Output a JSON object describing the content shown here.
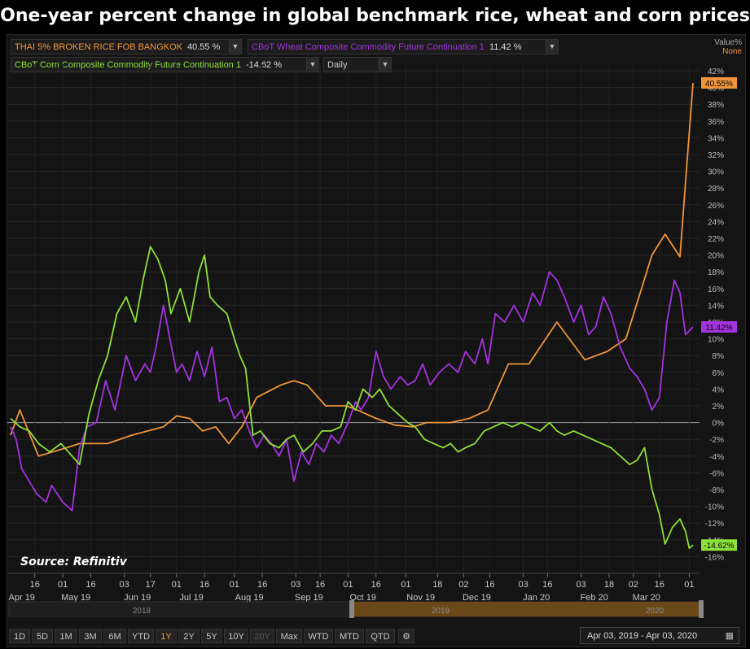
{
  "title": "One-year percent change in global benchmark rice, wheat and corn prices",
  "source": "Source: Refinitiv",
  "legend": {
    "rice": {
      "name": "THAI 5% BROKEN RICE FOB BANGKOK",
      "value": "40.55 %"
    },
    "wheat": {
      "name": "CBoT Wheat Composite Commodity Future Continuation 1",
      "value": "11.42 %"
    },
    "corn": {
      "name": "CBoT Corn Composite Commodity Future Continuation 1",
      "value": "-14.62 %"
    },
    "interval": "Daily",
    "value_label": "Value%",
    "none_label": "None"
  },
  "colors": {
    "rice": "#f0953a",
    "wheat": "#a433e0",
    "corn": "#8ee03a",
    "active": "#e8a33c"
  },
  "timeline": {
    "y2018": "2018",
    "y2019": "2019",
    "y2020": "2020"
  },
  "ranges": [
    "1D",
    "5D",
    "1M",
    "3M",
    "6M",
    "YTD",
    "1Y",
    "2Y",
    "5Y",
    "10Y",
    "20Y",
    "Max",
    "WTD",
    "MTD",
    "QTD"
  ],
  "active_range": "1Y",
  "disabled_range": "20Y",
  "settings_icon": "gear-icon",
  "date_range": "Apr 03, 2019  -  Apr 03, 2020",
  "calendar_icon": "calendar-icon",
  "chart_data": {
    "type": "line",
    "ylabel": "Value%",
    "ylim": [
      -17,
      43
    ],
    "yticks": [
      42,
      40,
      38,
      36,
      34,
      32,
      30,
      28,
      26,
      24,
      22,
      20,
      18,
      16,
      14,
      12,
      10,
      8,
      6,
      4,
      2,
      0,
      -2,
      -4,
      -6,
      -8,
      -10,
      -12,
      -14,
      -16
    ],
    "xlim": [
      "2019-04-03",
      "2020-04-03"
    ],
    "xticks": [
      {
        "date": "2019-04-16",
        "day": "16"
      },
      {
        "date": "2019-05-01",
        "day": "01"
      },
      {
        "date": "2019-05-16",
        "day": "16"
      },
      {
        "date": "2019-06-03",
        "day": "03"
      },
      {
        "date": "2019-06-17",
        "day": "17"
      },
      {
        "date": "2019-07-01",
        "day": "01"
      },
      {
        "date": "2019-07-16",
        "day": "16"
      },
      {
        "date": "2019-08-01",
        "day": "01"
      },
      {
        "date": "2019-08-16",
        "day": "16"
      },
      {
        "date": "2019-09-03",
        "day": "03"
      },
      {
        "date": "2019-09-16",
        "day": "16"
      },
      {
        "date": "2019-10-01",
        "day": "01"
      },
      {
        "date": "2019-10-16",
        "day": "16"
      },
      {
        "date": "2019-11-01",
        "day": "01"
      },
      {
        "date": "2019-11-18",
        "day": "18"
      },
      {
        "date": "2019-12-02",
        "day": "02"
      },
      {
        "date": "2019-12-16",
        "day": "16"
      },
      {
        "date": "2020-01-03",
        "day": "03"
      },
      {
        "date": "2020-01-16",
        "day": "16"
      },
      {
        "date": "2020-02-03",
        "day": "03"
      },
      {
        "date": "2020-02-18",
        "day": "18"
      },
      {
        "date": "2020-03-02",
        "day": "02"
      },
      {
        "date": "2020-03-16",
        "day": "16"
      },
      {
        "date": "2020-04-01",
        "day": "01"
      }
    ],
    "months": [
      {
        "date": "2019-04-09",
        "label": "Apr 19"
      },
      {
        "date": "2019-05-08",
        "label": "May 19"
      },
      {
        "date": "2019-06-10",
        "label": "Jun 19"
      },
      {
        "date": "2019-07-09",
        "label": "Jul 19"
      },
      {
        "date": "2019-08-09",
        "label": "Aug 19"
      },
      {
        "date": "2019-09-10",
        "label": "Sep 19"
      },
      {
        "date": "2019-10-09",
        "label": "Oct 19"
      },
      {
        "date": "2019-11-09",
        "label": "Nov 19"
      },
      {
        "date": "2019-12-09",
        "label": "Dec 19"
      },
      {
        "date": "2020-01-10",
        "label": "Jan 20"
      },
      {
        "date": "2020-02-10",
        "label": "Feb 20"
      },
      {
        "date": "2020-03-09",
        "label": "Mar 20"
      }
    ],
    "end_labels": {
      "rice": "40.55%",
      "wheat": "11.42%",
      "corn": "-14.62%"
    },
    "series": [
      {
        "name": "THAI 5% BROKEN RICE FOB BANGKOK",
        "key": "rice",
        "points": [
          [
            "2019-04-03",
            -1.5
          ],
          [
            "2019-04-08",
            1.5
          ],
          [
            "2019-04-18",
            -4
          ],
          [
            "2019-05-03",
            -3
          ],
          [
            "2019-05-10",
            -2.5
          ],
          [
            "2019-05-25",
            -2.5
          ],
          [
            "2019-06-07",
            -1.5
          ],
          [
            "2019-06-24",
            -0.5
          ],
          [
            "2019-07-01",
            0.8
          ],
          [
            "2019-07-08",
            0.5
          ],
          [
            "2019-07-15",
            -1
          ],
          [
            "2019-07-22",
            -0.5
          ],
          [
            "2019-07-29",
            -2.5
          ],
          [
            "2019-08-05",
            -0.5
          ],
          [
            "2019-08-13",
            3
          ],
          [
            "2019-08-26",
            4.5
          ],
          [
            "2019-09-02",
            5
          ],
          [
            "2019-09-09",
            4.5
          ],
          [
            "2019-09-19",
            2
          ],
          [
            "2019-09-30",
            2
          ],
          [
            "2019-10-06",
            1.5
          ],
          [
            "2019-10-16",
            0.5
          ],
          [
            "2019-10-26",
            -0.3
          ],
          [
            "2019-11-05",
            -0.5
          ],
          [
            "2019-11-12",
            0
          ],
          [
            "2019-11-25",
            0
          ],
          [
            "2019-12-05",
            0.5
          ],
          [
            "2019-12-15",
            1.5
          ],
          [
            "2019-12-26",
            7
          ],
          [
            "2020-01-06",
            7
          ],
          [
            "2020-01-21",
            12
          ],
          [
            "2020-02-05",
            7.5
          ],
          [
            "2020-02-17",
            8.5
          ],
          [
            "2020-02-27",
            10
          ],
          [
            "2020-03-12",
            20
          ],
          [
            "2020-03-19",
            22.5
          ],
          [
            "2020-03-27",
            19.8
          ],
          [
            "2020-04-03",
            40.55
          ]
        ]
      },
      {
        "name": "CBoT Wheat Composite Commodity Future Continuation 1",
        "key": "wheat",
        "points": [
          [
            "2019-04-03",
            -0.5
          ],
          [
            "2019-04-06",
            -2
          ],
          [
            "2019-04-09",
            -5.5
          ],
          [
            "2019-04-13",
            -7
          ],
          [
            "2019-04-17",
            -8.5
          ],
          [
            "2019-04-22",
            -9.5
          ],
          [
            "2019-04-25",
            -7.5
          ],
          [
            "2019-05-01",
            -9.5
          ],
          [
            "2019-05-06",
            -10.5
          ],
          [
            "2019-05-10",
            -3
          ],
          [
            "2019-05-14",
            -0.5
          ],
          [
            "2019-05-19",
            0
          ],
          [
            "2019-05-24",
            5
          ],
          [
            "2019-05-29",
            1.5
          ],
          [
            "2019-06-04",
            8
          ],
          [
            "2019-06-09",
            5
          ],
          [
            "2019-06-14",
            7
          ],
          [
            "2019-06-17",
            6
          ],
          [
            "2019-06-20",
            9
          ],
          [
            "2019-06-24",
            14
          ],
          [
            "2019-06-27",
            10.5
          ],
          [
            "2019-07-01",
            6
          ],
          [
            "2019-07-04",
            7
          ],
          [
            "2019-07-08",
            5
          ],
          [
            "2019-07-12",
            8.5
          ],
          [
            "2019-07-16",
            5.5
          ],
          [
            "2019-07-20",
            9
          ],
          [
            "2019-07-24",
            2.5
          ],
          [
            "2019-07-28",
            3
          ],
          [
            "2019-08-01",
            0.5
          ],
          [
            "2019-08-05",
            1.5
          ],
          [
            "2019-08-09",
            -1
          ],
          [
            "2019-08-13",
            -3
          ],
          [
            "2019-08-17",
            -1.5
          ],
          [
            "2019-08-21",
            -2.5
          ],
          [
            "2019-08-25",
            -4
          ],
          [
            "2019-08-29",
            -2
          ],
          [
            "2019-09-02",
            -7
          ],
          [
            "2019-09-06",
            -3.5
          ],
          [
            "2019-09-10",
            -5
          ],
          [
            "2019-09-14",
            -2.5
          ],
          [
            "2019-09-18",
            -3.5
          ],
          [
            "2019-09-22",
            -1.5
          ],
          [
            "2019-09-26",
            -2.5
          ],
          [
            "2019-10-01",
            0
          ],
          [
            "2019-10-05",
            2.5
          ],
          [
            "2019-10-08",
            1.5
          ],
          [
            "2019-10-12",
            3
          ],
          [
            "2019-10-16",
            8.5
          ],
          [
            "2019-10-20",
            5.5
          ],
          [
            "2019-10-24",
            4
          ],
          [
            "2019-10-29",
            5.5
          ],
          [
            "2019-11-02",
            4.5
          ],
          [
            "2019-11-06",
            5
          ],
          [
            "2019-11-10",
            7
          ],
          [
            "2019-11-14",
            4.5
          ],
          [
            "2019-11-19",
            6
          ],
          [
            "2019-11-24",
            7
          ],
          [
            "2019-11-29",
            6
          ],
          [
            "2019-12-03",
            8.5
          ],
          [
            "2019-12-08",
            7
          ],
          [
            "2019-12-12",
            10
          ],
          [
            "2019-12-15",
            7
          ],
          [
            "2019-12-19",
            13
          ],
          [
            "2019-12-24",
            12
          ],
          [
            "2019-12-29",
            14
          ],
          [
            "2020-01-03",
            12
          ],
          [
            "2020-01-08",
            15.5
          ],
          [
            "2020-01-12",
            14
          ],
          [
            "2020-01-17",
            18
          ],
          [
            "2020-01-21",
            17
          ],
          [
            "2020-01-25",
            15
          ],
          [
            "2020-01-30",
            12
          ],
          [
            "2020-02-03",
            14
          ],
          [
            "2020-02-07",
            10.5
          ],
          [
            "2020-02-11",
            11.5
          ],
          [
            "2020-02-15",
            15
          ],
          [
            "2020-02-19",
            13
          ],
          [
            "2020-02-24",
            9
          ],
          [
            "2020-02-29",
            6.5
          ],
          [
            "2020-03-04",
            5.5
          ],
          [
            "2020-03-08",
            4
          ],
          [
            "2020-03-12",
            1.5
          ],
          [
            "2020-03-16",
            3
          ],
          [
            "2020-03-20",
            12
          ],
          [
            "2020-03-24",
            17
          ],
          [
            "2020-03-27",
            15.5
          ],
          [
            "2020-03-30",
            10.5
          ],
          [
            "2020-04-03",
            11.42
          ]
        ]
      },
      {
        "name": "CBoT Corn Composite Commodity Future Continuation 1",
        "key": "corn",
        "points": [
          [
            "2019-04-03",
            0.5
          ],
          [
            "2019-04-08",
            -0.5
          ],
          [
            "2019-04-13",
            -1
          ],
          [
            "2019-04-18",
            -2.5
          ],
          [
            "2019-04-24",
            -3.5
          ],
          [
            "2019-04-30",
            -2.5
          ],
          [
            "2019-05-06",
            -4
          ],
          [
            "2019-05-10",
            -5
          ],
          [
            "2019-05-15",
            1
          ],
          [
            "2019-05-20",
            5
          ],
          [
            "2019-05-25",
            8
          ],
          [
            "2019-05-30",
            13
          ],
          [
            "2019-06-04",
            15
          ],
          [
            "2019-06-09",
            12
          ],
          [
            "2019-06-13",
            17
          ],
          [
            "2019-06-17",
            21
          ],
          [
            "2019-06-21",
            19.5
          ],
          [
            "2019-06-25",
            17
          ],
          [
            "2019-06-28",
            13
          ],
          [
            "2019-07-03",
            16
          ],
          [
            "2019-07-08",
            12
          ],
          [
            "2019-07-13",
            18
          ],
          [
            "2019-07-16",
            20
          ],
          [
            "2019-07-19",
            15
          ],
          [
            "2019-07-23",
            14
          ],
          [
            "2019-07-28",
            13
          ],
          [
            "2019-08-01",
            10
          ],
          [
            "2019-08-04",
            8
          ],
          [
            "2019-08-07",
            6.5
          ],
          [
            "2019-08-11",
            -1.5
          ],
          [
            "2019-08-15",
            -1
          ],
          [
            "2019-08-20",
            -2.5
          ],
          [
            "2019-08-25",
            -3
          ],
          [
            "2019-08-29",
            -2
          ],
          [
            "2019-09-02",
            -1.5
          ],
          [
            "2019-09-07",
            -3.5
          ],
          [
            "2019-09-12",
            -2.5
          ],
          [
            "2019-09-17",
            -1
          ],
          [
            "2019-09-22",
            -1
          ],
          [
            "2019-09-27",
            -0.5
          ],
          [
            "2019-10-01",
            2.5
          ],
          [
            "2019-10-05",
            1.5
          ],
          [
            "2019-10-09",
            4
          ],
          [
            "2019-10-14",
            3
          ],
          [
            "2019-10-18",
            4
          ],
          [
            "2019-10-23",
            2
          ],
          [
            "2019-10-28",
            1
          ],
          [
            "2019-11-02",
            0
          ],
          [
            "2019-11-06",
            -0.5
          ],
          [
            "2019-11-11",
            -2
          ],
          [
            "2019-11-16",
            -2.5
          ],
          [
            "2019-11-21",
            -3
          ],
          [
            "2019-11-25",
            -2.5
          ],
          [
            "2019-11-29",
            -3.5
          ],
          [
            "2019-12-03",
            -3
          ],
          [
            "2019-12-08",
            -2.5
          ],
          [
            "2019-12-13",
            -1
          ],
          [
            "2019-12-18",
            -0.5
          ],
          [
            "2019-12-23",
            0
          ],
          [
            "2019-12-28",
            -0.5
          ],
          [
            "2020-01-02",
            0
          ],
          [
            "2020-01-07",
            -0.5
          ],
          [
            "2020-01-12",
            -1
          ],
          [
            "2020-01-17",
            0
          ],
          [
            "2020-01-21",
            -1
          ],
          [
            "2020-01-25",
            -1.5
          ],
          [
            "2020-01-30",
            -1
          ],
          [
            "2020-02-04",
            -1.5
          ],
          [
            "2020-02-09",
            -2
          ],
          [
            "2020-02-14",
            -2.5
          ],
          [
            "2020-02-19",
            -3
          ],
          [
            "2020-02-24",
            -4
          ],
          [
            "2020-02-29",
            -5
          ],
          [
            "2020-03-04",
            -4.5
          ],
          [
            "2020-03-08",
            -3
          ],
          [
            "2020-03-12",
            -8
          ],
          [
            "2020-03-16",
            -11
          ],
          [
            "2020-03-19",
            -14.5
          ],
          [
            "2020-03-23",
            -12.5
          ],
          [
            "2020-03-27",
            -11.5
          ],
          [
            "2020-03-30",
            -13
          ],
          [
            "2020-04-01",
            -15
          ],
          [
            "2020-04-03",
            -14.62
          ]
        ]
      }
    ]
  }
}
